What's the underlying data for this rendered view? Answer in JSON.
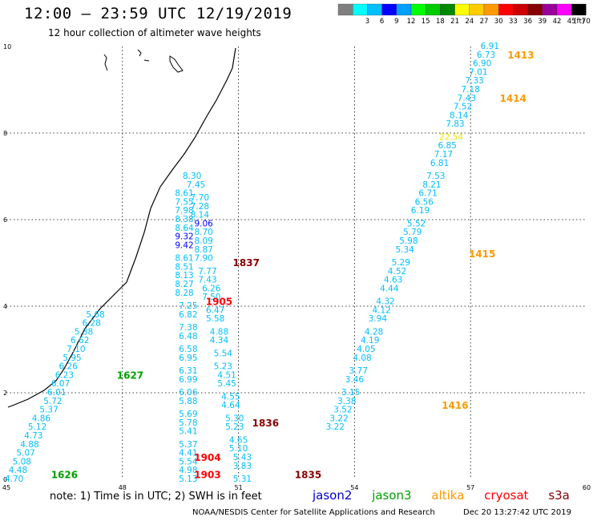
{
  "header": {
    "title": "12:00 – 23:59 UTC 12/19/2019",
    "subtitle": "12 hour collection of altimeter wave heights"
  },
  "legend": {
    "units": "(ft)",
    "bins": [
      {
        "color": "#7f7f7f",
        "label": ""
      },
      {
        "color": "#00ffff",
        "label": "3"
      },
      {
        "color": "#00bfff",
        "label": "6"
      },
      {
        "color": "#0000ff",
        "label": "9"
      },
      {
        "color": "#00a0ff",
        "label": "12"
      },
      {
        "color": "#00ff00",
        "label": "15"
      },
      {
        "color": "#00cc00",
        "label": "18"
      },
      {
        "color": "#008800",
        "label": "21"
      },
      {
        "color": "#ffff00",
        "label": "24"
      },
      {
        "color": "#ffcc00",
        "label": "27"
      },
      {
        "color": "#ff9900",
        "label": "30"
      },
      {
        "color": "#ff0000",
        "label": "33"
      },
      {
        "color": "#cc0000",
        "label": "36"
      },
      {
        "color": "#880000",
        "label": "39"
      },
      {
        "color": "#990099",
        "label": "42"
      },
      {
        "color": "#ff00ff",
        "label": "45"
      },
      {
        "color": "#000000",
        "label": "70"
      }
    ]
  },
  "axes": {
    "x_ticks": [
      "45",
      "48",
      "51",
      "54",
      "57",
      "60"
    ],
    "y_ticks": [
      "0",
      "2",
      "4",
      "6",
      "8",
      "10"
    ]
  },
  "satellites": [
    {
      "name": "jason2",
      "color": "#0000cc"
    },
    {
      "name": "jason3",
      "color": "#00a000"
    },
    {
      "name": "altika",
      "color": "#ff9900"
    },
    {
      "name": "cryosat",
      "color": "#ff0000"
    },
    {
      "name": "s3a",
      "color": "#880000"
    }
  ],
  "footer": {
    "note": "note: 1) Time is in UTC; 2) SWH is in feet",
    "credit": "NOAA/NESDIS Center for Satellite Applications and Research",
    "timestamp": "Dec 20 13:27:42 UTC 2019"
  },
  "colors": {
    "cyan": "#00bfff",
    "blue": "#0000ff",
    "jason3": "#00a000",
    "altika": "#ff9900",
    "cryosat": "#ff0000",
    "s3a": "#880000",
    "yellow": "#e8e800"
  },
  "passes": [
    {
      "time": "1626",
      "sat": "jason3",
      "lon": 46.5,
      "lat": 0.1
    },
    {
      "time": "1627",
      "sat": "jason3",
      "lon": 48.2,
      "lat": 2.4
    },
    {
      "time": "1413",
      "sat": "altika",
      "lon": 58.3,
      "lat": 9.8
    },
    {
      "time": "1414",
      "sat": "altika",
      "lon": 58.1,
      "lat": 8.8
    },
    {
      "time": "1415",
      "sat": "altika",
      "lon": 57.3,
      "lat": 5.2
    },
    {
      "time": "1416",
      "sat": "altika",
      "lon": 56.6,
      "lat": 1.7
    },
    {
      "time": "1837",
      "sat": "s3a",
      "lon": 51.2,
      "lat": 5.0
    },
    {
      "time": "1836",
      "sat": "s3a",
      "lon": 51.7,
      "lat": 1.3
    },
    {
      "time": "1835",
      "sat": "s3a",
      "lon": 52.8,
      "lat": 0.1
    },
    {
      "time": "1905",
      "sat": "cryosat",
      "lon": 50.5,
      "lat": 4.1
    },
    {
      "time": "1904",
      "sat": "cryosat",
      "lon": 50.2,
      "lat": 0.5
    },
    {
      "time": "1903",
      "sat": "cryosat",
      "lon": 50.2,
      "lat": 0.1
    }
  ],
  "tracks": [
    {
      "sat": "jason3",
      "points": [
        {
          "lon": 47.3,
          "lat": 3.8,
          "swh": "5.68"
        },
        {
          "lon": 47.2,
          "lat": 3.6,
          "swh": "6.28"
        },
        {
          "lon": 47.0,
          "lat": 3.4,
          "swh": "5.38"
        },
        {
          "lon": 46.9,
          "lat": 3.2,
          "swh": "6.62"
        },
        {
          "lon": 46.8,
          "lat": 3.0,
          "swh": "7.10"
        },
        {
          "lon": 46.7,
          "lat": 2.8,
          "swh": "5.95"
        },
        {
          "lon": 46.6,
          "lat": 2.6,
          "swh": "6.26"
        },
        {
          "lon": 46.5,
          "lat": 2.4,
          "swh": "6.23"
        },
        {
          "lon": 46.4,
          "lat": 2.2,
          "swh": "6.07"
        },
        {
          "lon": 46.3,
          "lat": 2.0,
          "swh": "6.01"
        },
        {
          "lon": 46.2,
          "lat": 1.8,
          "swh": "5.72"
        },
        {
          "lon": 46.1,
          "lat": 1.6,
          "swh": "5.37"
        },
        {
          "lon": 45.9,
          "lat": 1.4,
          "swh": "4.86"
        },
        {
          "lon": 45.8,
          "lat": 1.2,
          "swh": "5.12"
        },
        {
          "lon": 45.7,
          "lat": 1.0,
          "swh": "4.73"
        },
        {
          "lon": 45.6,
          "lat": 0.8,
          "swh": "4.88"
        },
        {
          "lon": 45.5,
          "lat": 0.6,
          "swh": "5.07"
        },
        {
          "lon": 45.4,
          "lat": 0.4,
          "swh": "5.08"
        },
        {
          "lon": 45.3,
          "lat": 0.2,
          "swh": "4.48"
        },
        {
          "lon": 45.2,
          "lat": 0.0,
          "swh": "4.70"
        }
      ]
    },
    {
      "sat": "cryosat",
      "points": [
        {
          "lon": 49.8,
          "lat": 7.0,
          "swh": "8.30"
        },
        {
          "lon": 49.9,
          "lat": 6.8,
          "swh": "7.45"
        },
        {
          "lon": 49.6,
          "lat": 6.6,
          "swh": "8.61"
        },
        {
          "lon": 50.0,
          "lat": 6.5,
          "swh": "7.70"
        },
        {
          "lon": 49.6,
          "lat": 6.4,
          "swh": "7.55"
        },
        {
          "lon": 50.0,
          "lat": 6.3,
          "swh": "7.28"
        },
        {
          "lon": 49.6,
          "lat": 6.2,
          "swh": "7.98"
        },
        {
          "lon": 50.0,
          "lat": 6.1,
          "swh": "8.14"
        },
        {
          "lon": 49.6,
          "lat": 6.0,
          "swh": "8.38"
        },
        {
          "lon": 50.1,
          "lat": 5.9,
          "swh": "9.06",
          "color": "blue"
        },
        {
          "lon": 49.6,
          "lat": 5.8,
          "swh": "8.64"
        },
        {
          "lon": 50.1,
          "lat": 5.7,
          "swh": "8.70"
        },
        {
          "lon": 49.6,
          "lat": 5.6,
          "swh": "9.32",
          "color": "blue"
        },
        {
          "lon": 50.1,
          "lat": 5.5,
          "swh": "8.09"
        },
        {
          "lon": 49.6,
          "lat": 5.4,
          "swh": "9.42",
          "color": "blue"
        },
        {
          "lon": 50.1,
          "lat": 5.3,
          "swh": "8.87"
        },
        {
          "lon": 49.6,
          "lat": 5.1,
          "swh": "8.61"
        },
        {
          "lon": 50.1,
          "lat": 5.1,
          "swh": "7.90"
        },
        {
          "lon": 49.6,
          "lat": 4.9,
          "swh": "8.51"
        },
        {
          "lon": 50.2,
          "lat": 4.8,
          "swh": "7.77"
        },
        {
          "lon": 49.6,
          "lat": 4.7,
          "swh": "8.13"
        },
        {
          "lon": 50.2,
          "lat": 4.6,
          "swh": "7.43"
        },
        {
          "lon": 49.6,
          "lat": 4.5,
          "swh": "8.27"
        },
        {
          "lon": 50.3,
          "lat": 4.4,
          "swh": "6.26"
        },
        {
          "lon": 49.6,
          "lat": 4.3,
          "swh": "8.28"
        },
        {
          "lon": 50.3,
          "lat": 4.2,
          "swh": "7.50"
        },
        {
          "lon": 49.7,
          "lat": 4.0,
          "swh": "7.25"
        },
        {
          "lon": 50.4,
          "lat": 3.9,
          "swh": "6.47"
        },
        {
          "lon": 49.7,
          "lat": 3.8,
          "swh": "6.82"
        },
        {
          "lon": 50.4,
          "lat": 3.7,
          "swh": "5.58"
        },
        {
          "lon": 49.7,
          "lat": 3.5,
          "swh": "7.38"
        },
        {
          "lon": 50.5,
          "lat": 3.4,
          "swh": "4.88"
        },
        {
          "lon": 49.7,
          "lat": 3.3,
          "swh": "6.48"
        },
        {
          "lon": 50.5,
          "lat": 3.2,
          "swh": "4.34"
        },
        {
          "lon": 49.7,
          "lat": 3.0,
          "swh": "6.58"
        },
        {
          "lon": 50.6,
          "lat": 2.9,
          "swh": "5.54"
        },
        {
          "lon": 49.7,
          "lat": 2.8,
          "swh": "6.95"
        },
        {
          "lon": 50.6,
          "lat": 2.6,
          "swh": "5.23"
        },
        {
          "lon": 49.7,
          "lat": 2.5,
          "swh": "6.31"
        },
        {
          "lon": 50.7,
          "lat": 2.4,
          "swh": "4.51"
        },
        {
          "lon": 49.7,
          "lat": 2.3,
          "swh": "6.99"
        },
        {
          "lon": 50.7,
          "lat": 2.2,
          "swh": "5.45"
        },
        {
          "lon": 49.7,
          "lat": 2.0,
          "swh": "6.06"
        },
        {
          "lon": 50.8,
          "lat": 1.9,
          "swh": "4.55"
        },
        {
          "lon": 49.7,
          "lat": 1.8,
          "swh": "5.88"
        },
        {
          "lon": 50.8,
          "lat": 1.7,
          "swh": "4.64"
        },
        {
          "lon": 49.7,
          "lat": 1.5,
          "swh": "5.69"
        },
        {
          "lon": 50.9,
          "lat": 1.4,
          "swh": "5.30"
        },
        {
          "lon": 49.7,
          "lat": 1.3,
          "swh": "5.78"
        },
        {
          "lon": 50.9,
          "lat": 1.2,
          "swh": "5.23"
        },
        {
          "lon": 49.7,
          "lat": 1.1,
          "swh": "5.41"
        },
        {
          "lon": 51.0,
          "lat": 0.9,
          "swh": "4.65"
        },
        {
          "lon": 49.7,
          "lat": 0.8,
          "swh": "5.37"
        },
        {
          "lon": 51.0,
          "lat": 0.7,
          "swh": "5.10"
        },
        {
          "lon": 49.7,
          "lat": 0.6,
          "swh": "4.41"
        },
        {
          "lon": 51.1,
          "lat": 0.5,
          "swh": "5.43"
        },
        {
          "lon": 49.7,
          "lat": 0.4,
          "swh": "5.54"
        },
        {
          "lon": 51.1,
          "lat": 0.3,
          "swh": "3.83"
        },
        {
          "lon": 49.7,
          "lat": 0.2,
          "swh": "4.98"
        },
        {
          "lon": 51.1,
          "lat": 0.0,
          "swh": "5.31"
        },
        {
          "lon": 49.7,
          "lat": 0.0,
          "swh": "5.13"
        }
      ]
    },
    {
      "sat": "altika",
      "points": [
        {
          "lon": 57.5,
          "lat": 10.0,
          "swh": "6.91"
        },
        {
          "lon": 57.4,
          "lat": 9.8,
          "swh": "6.73"
        },
        {
          "lon": 57.3,
          "lat": 9.6,
          "swh": "6.90"
        },
        {
          "lon": 57.2,
          "lat": 9.4,
          "swh": "7.01"
        },
        {
          "lon": 57.1,
          "lat": 9.2,
          "swh": "7.33"
        },
        {
          "lon": 57.0,
          "lat": 9.0,
          "swh": "7.18"
        },
        {
          "lon": 56.9,
          "lat": 8.8,
          "swh": "7.43"
        },
        {
          "lon": 56.8,
          "lat": 8.6,
          "swh": "7.52"
        },
        {
          "lon": 56.7,
          "lat": 8.4,
          "swh": "8.14"
        },
        {
          "lon": 56.6,
          "lat": 8.2,
          "swh": "7.83"
        },
        {
          "lon": 56.5,
          "lat": 7.9,
          "swh": "22.54",
          "color": "yellow"
        },
        {
          "lon": 56.4,
          "lat": 7.7,
          "swh": "6.85"
        },
        {
          "lon": 56.3,
          "lat": 7.5,
          "swh": "7.17"
        },
        {
          "lon": 56.2,
          "lat": 7.3,
          "swh": "6.81"
        },
        {
          "lon": 56.1,
          "lat": 7.0,
          "swh": "7.53"
        },
        {
          "lon": 56.0,
          "lat": 6.8,
          "swh": "8.21"
        },
        {
          "lon": 55.9,
          "lat": 6.6,
          "swh": "6.71"
        },
        {
          "lon": 55.8,
          "lat": 6.4,
          "swh": "6.56"
        },
        {
          "lon": 55.7,
          "lat": 6.2,
          "swh": "6.19"
        },
        {
          "lon": 55.6,
          "lat": 5.9,
          "swh": "5.52"
        },
        {
          "lon": 55.5,
          "lat": 5.7,
          "swh": "5.79"
        },
        {
          "lon": 55.4,
          "lat": 5.5,
          "swh": "5.98"
        },
        {
          "lon": 55.3,
          "lat": 5.3,
          "swh": "5.34"
        },
        {
          "lon": 55.2,
          "lat": 5.0,
          "swh": "5.29"
        },
        {
          "lon": 55.1,
          "lat": 4.8,
          "swh": "4.52"
        },
        {
          "lon": 55.0,
          "lat": 4.6,
          "swh": "4.63"
        },
        {
          "lon": 54.9,
          "lat": 4.4,
          "swh": "4.44"
        },
        {
          "lon": 54.8,
          "lat": 4.1,
          "swh": "4.32"
        },
        {
          "lon": 54.7,
          "lat": 3.9,
          "swh": "4.12"
        },
        {
          "lon": 54.6,
          "lat": 3.7,
          "swh": "3.94"
        },
        {
          "lon": 54.5,
          "lat": 3.4,
          "swh": "4.28"
        },
        {
          "lon": 54.4,
          "lat": 3.2,
          "swh": "4.19"
        },
        {
          "lon": 54.3,
          "lat": 3.0,
          "swh": "4.05"
        },
        {
          "lon": 54.2,
          "lat": 2.8,
          "swh": "4.08"
        },
        {
          "lon": 54.1,
          "lat": 2.5,
          "swh": "3.77"
        },
        {
          "lon": 54.0,
          "lat": 2.3,
          "swh": "3.46"
        },
        {
          "lon": 53.9,
          "lat": 2.0,
          "swh": "3.15"
        },
        {
          "lon": 53.8,
          "lat": 1.8,
          "swh": "3.38"
        },
        {
          "lon": 53.7,
          "lat": 1.6,
          "swh": "3.52"
        },
        {
          "lon": 53.6,
          "lat": 1.4,
          "swh": "3.22"
        },
        {
          "lon": 53.5,
          "lat": 1.2,
          "swh": "3.22"
        }
      ]
    }
  ]
}
